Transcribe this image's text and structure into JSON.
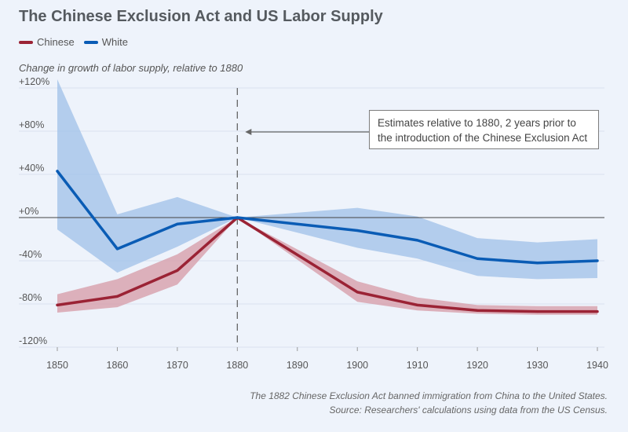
{
  "title": "The Chinese Exclusion Act and US Labor Supply",
  "subtitle": "Change in growth of labor supply, relative to 1880",
  "footer": {
    "note": "The 1882 Chinese Exclusion Act banned immigration from China to the United States.",
    "source": "Source: Researchers' calculations using data from the US Census."
  },
  "annotation": "Estimates relative to 1880, 2 years prior to the introduction of the Chinese Exclusion Act",
  "legend": [
    {
      "name": "Chinese",
      "color": "#9b2335"
    },
    {
      "name": "White",
      "color": "#0a5cb5"
    }
  ],
  "chart_data": {
    "type": "line",
    "x": [
      1850,
      1860,
      1870,
      1880,
      1890,
      1900,
      1910,
      1920,
      1930,
      1940
    ],
    "x_tick_labels": [
      "1850",
      "1860",
      "1870",
      "1880",
      "1890",
      "1900",
      "1910",
      "1920",
      "1930",
      "1940"
    ],
    "y_tick_labels": [
      "+120%",
      "+80%",
      "+40%",
      "+0%",
      "-40%",
      "-80%",
      "-120%"
    ],
    "y_ticks": [
      120,
      80,
      40,
      0,
      -40,
      -80,
      -120
    ],
    "ylim": [
      -120,
      120
    ],
    "xlim": [
      1850,
      1940
    ],
    "reference_line_x": 1880,
    "grid": "horizontal",
    "legend_position": "top-left",
    "series": [
      {
        "name": "Chinese",
        "color": "#9b2335",
        "band_color": "#d59aa6",
        "x": [
          1850,
          1860,
          1870,
          1880,
          1900,
          1910,
          1920,
          1930,
          1940
        ],
        "values": [
          -81,
          -73,
          -49,
          0,
          -69,
          -81,
          -86,
          -87,
          -87
        ],
        "lower": [
          -88,
          -83,
          -62,
          0,
          -78,
          -86,
          -89,
          -90,
          -90
        ],
        "upper": [
          -71,
          -57,
          -34,
          0,
          -59,
          -74,
          -81,
          -82,
          -82
        ]
      },
      {
        "name": "White",
        "color": "#0a5cb5",
        "band_color": "#9fc0e8",
        "x": [
          1850,
          1860,
          1870,
          1880,
          1900,
          1910,
          1920,
          1930,
          1940
        ],
        "values": [
          43,
          -29,
          -6,
          0,
          -12,
          -21,
          -38,
          -42,
          -40
        ],
        "lower": [
          -11,
          -51,
          -27,
          0,
          -28,
          -38,
          -54,
          -57,
          -56
        ],
        "upper": [
          128,
          3,
          19,
          0,
          9,
          1,
          -19,
          -23,
          -20
        ]
      }
    ]
  }
}
